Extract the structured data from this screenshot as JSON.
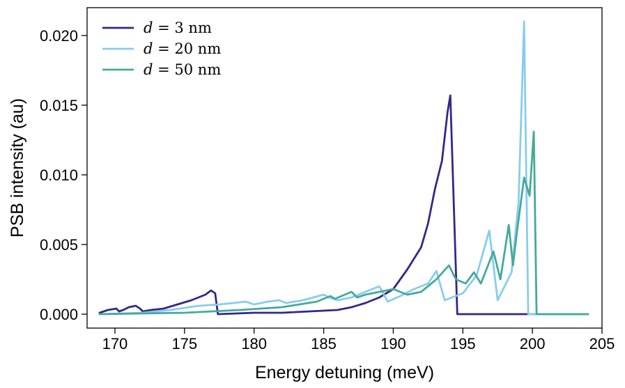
{
  "chart_data": {
    "type": "line",
    "title": "",
    "xlabel": "Energy detuning (meV)",
    "ylabel": "PSB intensity (au)",
    "xlim": [
      168.0,
      205.0
    ],
    "ylim": [
      -0.001,
      0.022
    ],
    "xticks": [
      170,
      175,
      180,
      185,
      190,
      195,
      200,
      205
    ],
    "xtick_labels": [
      "170",
      "175",
      "180",
      "185",
      "190",
      "195",
      "200",
      "205"
    ],
    "yticks": [
      0.0,
      0.005,
      0.01,
      0.015,
      0.02
    ],
    "ytick_labels": [
      "0.000",
      "0.005",
      "0.010",
      "0.015",
      "0.020"
    ],
    "grid": false,
    "legend_position": "top-left",
    "series": [
      {
        "name": "d = 3 nm",
        "legend_label": "d = 3 nm",
        "legend_var": "d",
        "legend_rest": " = 3 nm",
        "color": "#332788",
        "x": [
          168.9,
          169.5,
          170.1,
          170.3,
          170.6,
          171.0,
          171.5,
          171.8,
          172.0,
          172.6,
          173.5,
          174.5,
          175.5,
          176.5,
          176.9,
          177.2,
          177.4,
          180.0,
          182.0,
          184.0,
          186.0,
          187.0,
          188.0,
          189.0,
          190.0,
          190.5,
          191.0,
          191.5,
          192.0,
          192.5,
          193.0,
          193.5,
          193.9,
          194.1,
          194.6,
          204.0
        ],
        "y": [
          0.0001,
          0.0003,
          0.0004,
          0.0002,
          0.0003,
          0.0005,
          0.0006,
          0.0004,
          0.0002,
          0.0003,
          0.0004,
          0.0007,
          0.001,
          0.0014,
          0.0017,
          0.0015,
          0.0,
          0.0001,
          0.0001,
          0.0002,
          0.0003,
          0.0005,
          0.0008,
          0.0012,
          0.0018,
          0.0025,
          0.0032,
          0.004,
          0.0048,
          0.0065,
          0.009,
          0.011,
          0.0145,
          0.0157,
          0.0,
          0.0
        ]
      },
      {
        "name": "d = 20 nm",
        "legend_label": "d = 20 nm",
        "legend_var": "d",
        "legend_rest": " = 20 nm",
        "color": "#88ccee",
        "x": [
          168.9,
          172.0,
          174.0,
          176.0,
          177.5,
          178.5,
          179.4,
          180.0,
          181.0,
          181.8,
          182.3,
          183.5,
          185.0,
          185.4,
          186.0,
          187.0,
          188.0,
          189.0,
          189.6,
          190.5,
          191.5,
          192.5,
          193.1,
          193.7,
          195.0,
          196.0,
          196.9,
          197.5,
          198.5,
          199.0,
          199.4,
          199.7,
          204.0
        ],
        "y": [
          0.0,
          0.0001,
          0.0003,
          0.0006,
          0.0007,
          0.0008,
          0.0009,
          0.0007,
          0.0009,
          0.001,
          0.0008,
          0.001,
          0.0014,
          0.0012,
          0.001,
          0.0012,
          0.0016,
          0.002,
          0.0009,
          0.0013,
          0.0018,
          0.0022,
          0.0031,
          0.001,
          0.0015,
          0.0028,
          0.006,
          0.001,
          0.003,
          0.008,
          0.021,
          0.0,
          0.0
        ]
      },
      {
        "name": "d = 50 nm",
        "legend_label": "d = 50 nm",
        "legend_var": "d",
        "legend_rest": " = 50 nm",
        "color": "#44aa99",
        "x": [
          168.9,
          175.0,
          179.0,
          182.0,
          184.5,
          185.5,
          185.8,
          187.0,
          187.4,
          188.0,
          190.0,
          191.0,
          192.0,
          193.1,
          194.0,
          194.5,
          195.2,
          195.8,
          196.3,
          197.2,
          197.7,
          198.3,
          198.6,
          198.9,
          199.4,
          199.8,
          200.1,
          200.3,
          204.0
        ],
        "y": [
          0.0,
          0.0001,
          0.0003,
          0.0005,
          0.0009,
          0.0013,
          0.0011,
          0.0016,
          0.0012,
          0.0014,
          0.0018,
          0.0014,
          0.0016,
          0.0025,
          0.0035,
          0.0025,
          0.0022,
          0.003,
          0.0022,
          0.0045,
          0.0025,
          0.0064,
          0.0035,
          0.006,
          0.0098,
          0.0085,
          0.0131,
          0.0,
          0.0
        ]
      }
    ]
  }
}
